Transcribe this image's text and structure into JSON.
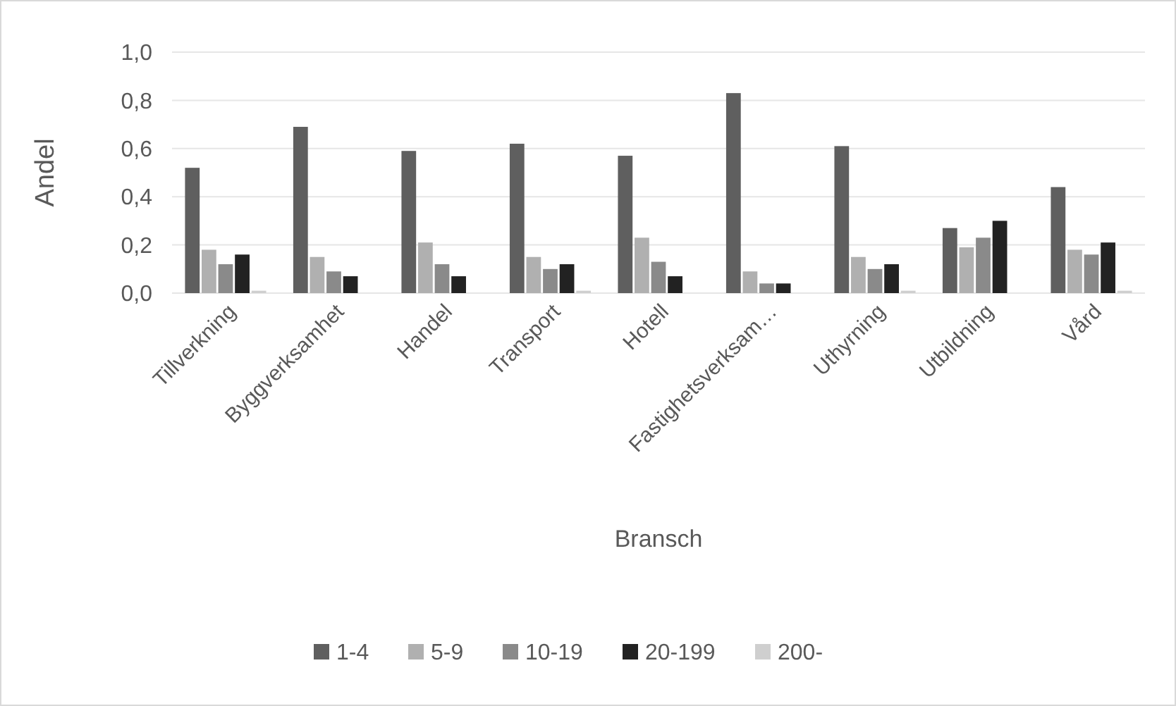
{
  "chart_data": {
    "type": "bar",
    "xlabel": "Bransch",
    "ylabel": "Andel",
    "categories": [
      "Tillverkning",
      "Byggverksamhet",
      "Handel",
      "Transport",
      "Hotell",
      "Fastighetsverksam…",
      "Uthyrning",
      "Utbildning",
      "Vård"
    ],
    "series": [
      {
        "name": "1-4",
        "color": "#5f5f5f",
        "values": [
          0.52,
          0.69,
          0.59,
          0.62,
          0.57,
          0.83,
          0.61,
          0.27,
          0.44
        ]
      },
      {
        "name": "5-9",
        "color": "#b0b0b0",
        "values": [
          0.18,
          0.15,
          0.21,
          0.15,
          0.23,
          0.09,
          0.15,
          0.19,
          0.18
        ]
      },
      {
        "name": "10-19",
        "color": "#8a8a8a",
        "values": [
          0.12,
          0.09,
          0.12,
          0.1,
          0.13,
          0.04,
          0.1,
          0.23,
          0.16
        ]
      },
      {
        "name": "20-199",
        "color": "#222222",
        "values": [
          0.16,
          0.07,
          0.07,
          0.12,
          0.07,
          0.04,
          0.12,
          0.3,
          0.21
        ]
      },
      {
        "name": "200-",
        "color": "#cfcfcf",
        "values": [
          0.01,
          0.0,
          0.0,
          0.01,
          0.0,
          0.0,
          0.01,
          0.0,
          0.01
        ]
      }
    ],
    "ylim": [
      0,
      1
    ],
    "yticks": [
      {
        "value": 0,
        "label": "0,0"
      },
      {
        "value": 0.2,
        "label": "0,2"
      },
      {
        "value": 0.4,
        "label": "0,4"
      },
      {
        "value": 0.6,
        "label": "0,6"
      },
      {
        "value": 0.8,
        "label": "0,8"
      },
      {
        "value": 1,
        "label": "1,0"
      }
    ],
    "grid": "y",
    "legend": "bottom"
  }
}
